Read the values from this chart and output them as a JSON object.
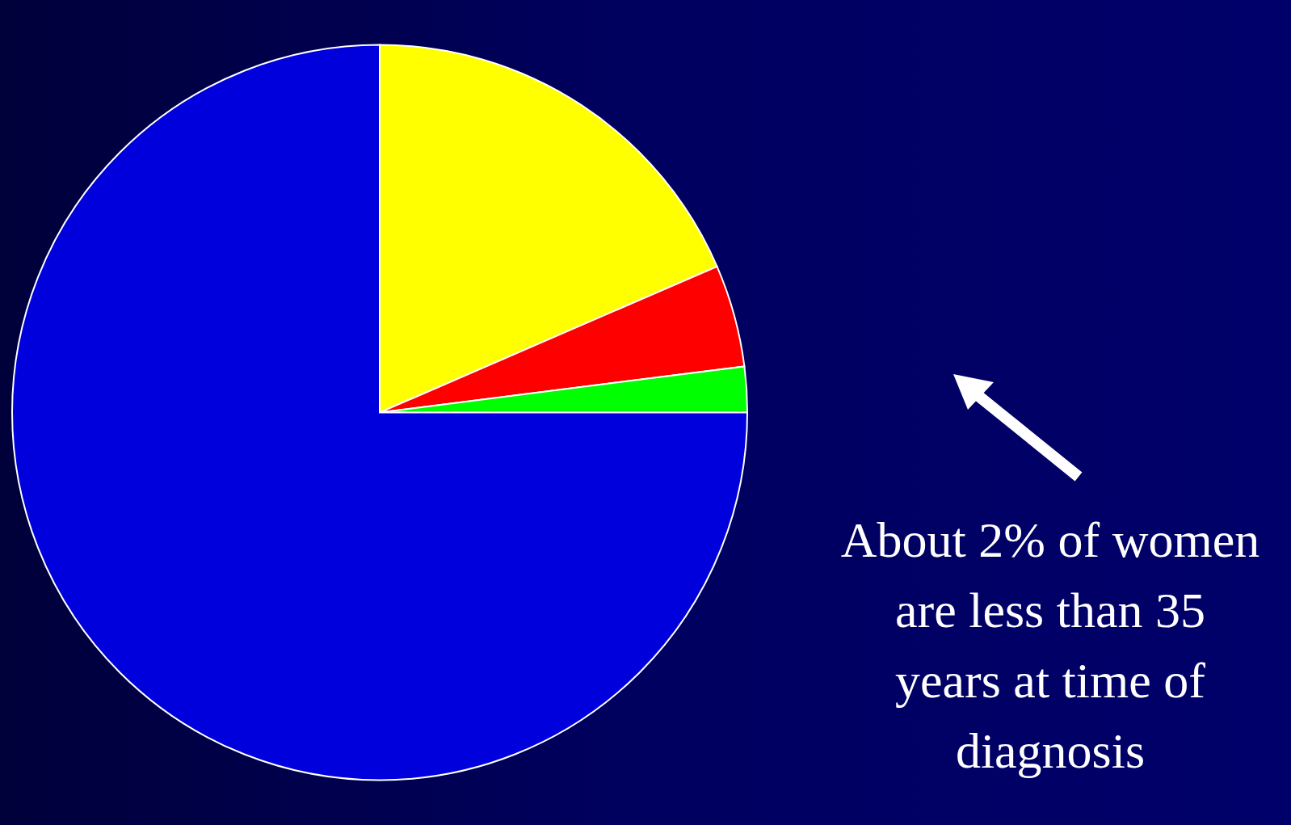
{
  "chart_data": {
    "type": "pie",
    "categories": [
      null,
      null,
      null,
      null
    ],
    "values": [
      18.5,
      4.5,
      2,
      75
    ],
    "colors": [
      "#ffff00",
      "#ff0000",
      "#00ff00",
      "#0000dd"
    ],
    "annotations": [
      "About 2% of women are less than 35 years at time of diagnosis"
    ]
  }
}
